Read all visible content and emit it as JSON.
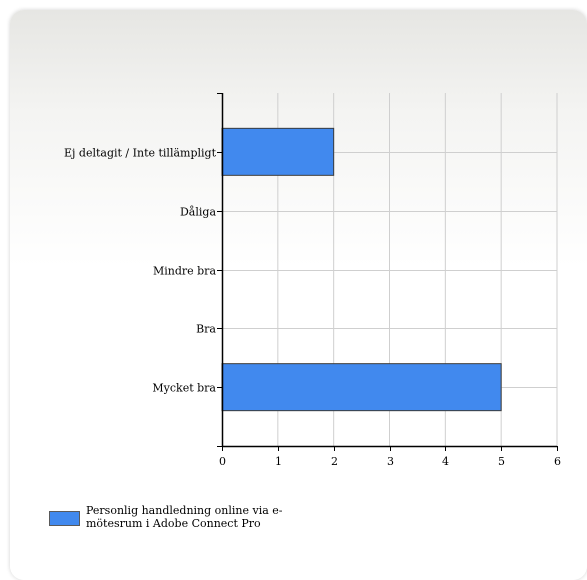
{
  "chart_data": {
    "type": "bar",
    "orientation": "horizontal",
    "categories": [
      "Ej deltagit / Inte tillämpligt",
      "Dåliga",
      "Mindre bra",
      "Bra",
      "Mycket bra"
    ],
    "series": [
      {
        "name": "Personlig handledning online via e-mötesrum i Adobe Connect Pro",
        "values": [
          2,
          0,
          0,
          0,
          5
        ],
        "color": "#4189EE"
      }
    ],
    "xlim": [
      0,
      6
    ],
    "xticks": [
      0,
      1,
      2,
      3,
      4,
      5,
      6
    ],
    "grid": true,
    "legend_position": "bottom-left"
  }
}
